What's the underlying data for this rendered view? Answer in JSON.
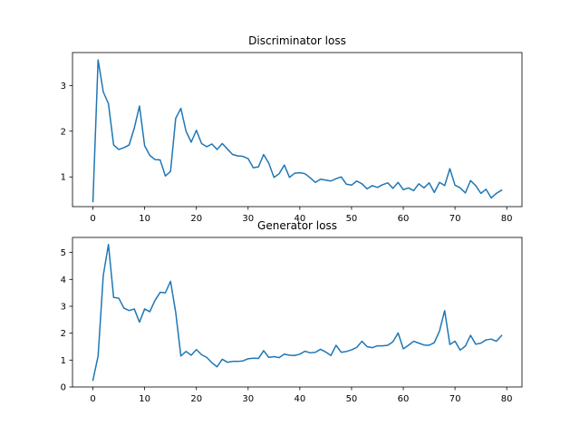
{
  "chart_data": [
    {
      "type": "line",
      "title": "Discriminator loss",
      "xlabel": "",
      "ylabel": "",
      "xlim": [
        -3.95,
        82.95
      ],
      "ylim": [
        0.35,
        3.72
      ],
      "xticks": [
        0,
        10,
        20,
        30,
        40,
        50,
        60,
        70,
        80
      ],
      "yticks": [
        1,
        2,
        3
      ],
      "grid": false,
      "color": "#1f77b4",
      "series": [
        {
          "x": [
            0,
            1,
            2,
            3,
            4,
            5,
            6,
            7,
            8,
            9,
            10,
            11,
            12,
            13,
            14,
            15,
            16,
            17,
            18,
            19,
            20,
            21,
            22,
            23,
            24,
            25,
            26,
            27,
            28,
            29,
            30,
            31,
            32,
            33,
            34,
            35,
            36,
            37,
            38,
            39,
            40,
            41,
            42,
            43,
            44,
            45,
            46,
            47,
            48,
            49,
            50,
            51,
            52,
            53,
            54,
            55,
            56,
            57,
            58,
            59,
            60,
            61,
            62,
            63,
            64,
            65,
            66,
            67,
            68,
            69,
            70,
            71,
            72,
            73,
            74,
            75,
            76,
            77,
            78,
            79
          ],
          "values": [
            0.46,
            3.56,
            2.86,
            2.6,
            1.7,
            1.6,
            1.64,
            1.7,
            2.07,
            2.55,
            1.68,
            1.47,
            1.38,
            1.37,
            1.02,
            1.12,
            2.28,
            2.5,
            2.0,
            1.76,
            2.02,
            1.73,
            1.66,
            1.72,
            1.6,
            1.73,
            1.61,
            1.49,
            1.46,
            1.45,
            1.4,
            1.2,
            1.22,
            1.49,
            1.3,
            0.99,
            1.07,
            1.26,
            0.99,
            1.08,
            1.09,
            1.07,
            0.98,
            0.88,
            0.95,
            0.93,
            0.91,
            0.96,
            1.0,
            0.84,
            0.82,
            0.91,
            0.85,
            0.74,
            0.81,
            0.77,
            0.83,
            0.87,
            0.75,
            0.88,
            0.72,
            0.76,
            0.7,
            0.85,
            0.76,
            0.87,
            0.66,
            0.88,
            0.81,
            1.18,
            0.82,
            0.76,
            0.65,
            0.92,
            0.81,
            0.64,
            0.73,
            0.54,
            0.64,
            0.71
          ]
        }
      ]
    },
    {
      "type": "line",
      "title": "Generator loss",
      "xlabel": "",
      "ylabel": "",
      "xlim": [
        -3.95,
        82.95
      ],
      "ylim": [
        0,
        5.56
      ],
      "xticks": [
        0,
        10,
        20,
        30,
        40,
        50,
        60,
        70,
        80
      ],
      "yticks": [
        0,
        1,
        2,
        3,
        4,
        5
      ],
      "grid": false,
      "color": "#1f77b4",
      "series": [
        {
          "x": [
            0,
            1,
            2,
            3,
            4,
            5,
            6,
            7,
            8,
            9,
            10,
            11,
            12,
            13,
            14,
            15,
            16,
            17,
            18,
            19,
            20,
            21,
            22,
            23,
            24,
            25,
            26,
            27,
            28,
            29,
            30,
            31,
            32,
            33,
            34,
            35,
            36,
            37,
            38,
            39,
            40,
            41,
            42,
            43,
            44,
            45,
            46,
            47,
            48,
            49,
            50,
            51,
            52,
            53,
            54,
            55,
            56,
            57,
            58,
            59,
            60,
            61,
            62,
            63,
            64,
            65,
            66,
            67,
            68,
            69,
            70,
            71,
            72,
            73,
            74,
            75,
            76,
            77,
            78,
            79
          ],
          "values": [
            0.25,
            1.15,
            4.15,
            5.3,
            3.33,
            3.3,
            2.93,
            2.84,
            2.9,
            2.41,
            2.9,
            2.8,
            3.22,
            3.52,
            3.5,
            3.93,
            2.78,
            1.15,
            1.32,
            1.18,
            1.39,
            1.2,
            1.1,
            0.9,
            0.75,
            1.03,
            0.92,
            0.95,
            0.95,
            0.97,
            1.05,
            1.07,
            1.06,
            1.35,
            1.1,
            1.13,
            1.09,
            1.22,
            1.18,
            1.17,
            1.22,
            1.33,
            1.27,
            1.29,
            1.4,
            1.3,
            1.17,
            1.55,
            1.29,
            1.32,
            1.38,
            1.47,
            1.7,
            1.5,
            1.46,
            1.53,
            1.53,
            1.55,
            1.68,
            2.01,
            1.42,
            1.55,
            1.7,
            1.63,
            1.56,
            1.55,
            1.65,
            2.08,
            2.84,
            1.58,
            1.7,
            1.37,
            1.52,
            1.92,
            1.59,
            1.63,
            1.75,
            1.78,
            1.7,
            1.91
          ]
        }
      ]
    }
  ]
}
